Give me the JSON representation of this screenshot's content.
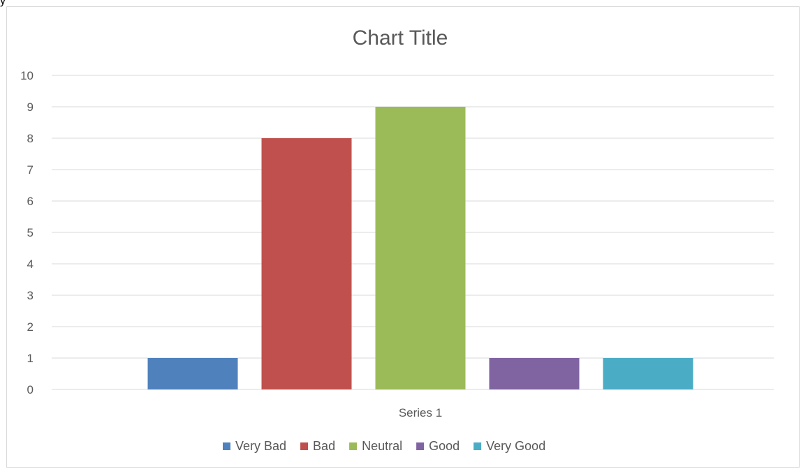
{
  "chart_data": {
    "type": "bar",
    "title": "Chart Title",
    "categories": [
      "Series 1"
    ],
    "series": [
      {
        "name": "Very Bad",
        "values": [
          1
        ],
        "color": "#4f81bd"
      },
      {
        "name": "Bad",
        "values": [
          8
        ],
        "color": "#c0504d"
      },
      {
        "name": "Neutral",
        "values": [
          9
        ],
        "color": "#9bbb59"
      },
      {
        "name": "Good",
        "values": [
          1
        ],
        "color": "#8064a2"
      },
      {
        "name": "Very Good",
        "values": [
          1
        ],
        "color": "#4bacc6"
      }
    ],
    "xlabel": "",
    "ylabel": "",
    "ylim": [
      0,
      10
    ],
    "yticks": [
      0,
      1,
      2,
      3,
      4,
      5,
      6,
      7,
      8,
      9,
      10
    ],
    "grid": true,
    "legend": "bottom",
    "colors": {
      "gridline": "#d9d9d9",
      "text": "#595959"
    }
  },
  "stray_text": "y"
}
